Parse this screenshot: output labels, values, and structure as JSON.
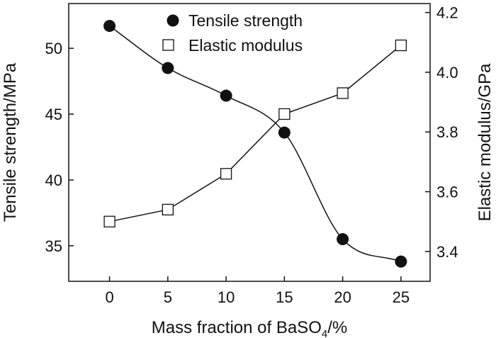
{
  "chart_data": {
    "type": "line",
    "categories": [
      0,
      5,
      10,
      15,
      20,
      25
    ],
    "series": [
      {
        "name": "Tensile strength",
        "axis": "left",
        "marker": "filled-circle",
        "smooth": true,
        "values": [
          51.7,
          48.5,
          46.4,
          43.6,
          35.5,
          33.8
        ]
      },
      {
        "name": "Elastic modulus",
        "axis": "right",
        "marker": "open-square",
        "smooth": false,
        "values": [
          3.5,
          3.54,
          3.66,
          3.86,
          3.93,
          4.09
        ]
      }
    ],
    "xlabel": "Mass fraction of BaSO",
    "xlabel_subscript": "4",
    "xlabel_suffix": "/%",
    "ylabel_left": "Tensile strength/MPa",
    "ylabel_right": "Elastic modulus/GPa",
    "xlim": [
      -3.5,
      27.5
    ],
    "ylim_left": [
      32.3,
      53.4
    ],
    "ylim_right": [
      3.3,
      4.23
    ],
    "x_ticks": [
      "0",
      "5",
      "10",
      "15",
      "20",
      "25"
    ],
    "y_left_ticks": [
      "35",
      "40",
      "45",
      "50"
    ],
    "y_right_ticks": [
      "3.4",
      "3.6",
      "3.8",
      "4.0",
      "4.2"
    ],
    "legend_position": "top-center",
    "grid": false
  }
}
